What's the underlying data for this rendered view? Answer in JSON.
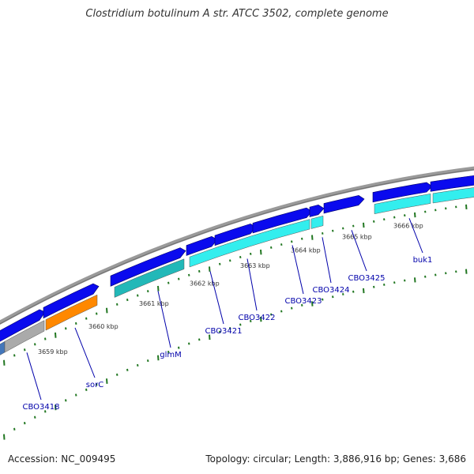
{
  "header": {
    "title": "Clostridium botulinum A str. ATCC 3502, complete genome"
  },
  "footer": {
    "accession": "Accession: NC_009495",
    "summary": "Topology: circular; Length: 3,886,916 bp; Genes: 3,686"
  },
  "colors": {
    "backbone": "#888888",
    "forward": "#0a0aee",
    "reverse_cyan": "#33eeee",
    "reverse_teal": "#22b8b8",
    "reverse_orange": "#ff8800",
    "reverse_grey": "#aaaaaa",
    "reverse_blue": "#4477bb",
    "ticks": "#227722",
    "label": "#0000aa"
  },
  "kbp_ticks": [
    "3659 kbp",
    "3660 kbp",
    "3661 kbp",
    "3662 kbp",
    "3663 kbp",
    "3664 kbp",
    "3665 kbp",
    "3666 kbp"
  ],
  "gene_labels": [
    "CBO3418",
    "sorC",
    "glmM",
    "CBO3421",
    "CBO3422",
    "CBO3423",
    "CBO3424",
    "CBO3425",
    "buk1"
  ]
}
